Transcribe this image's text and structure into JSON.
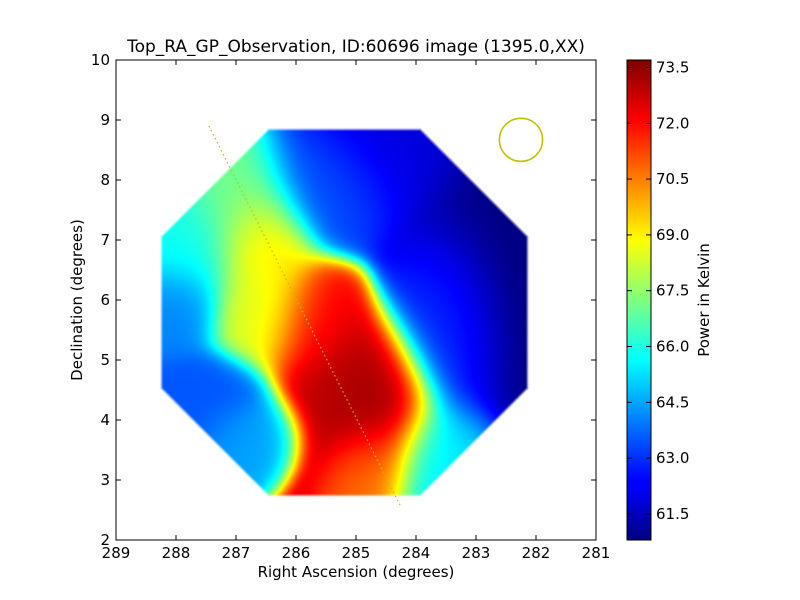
{
  "chart_data": {
    "type": "heatmap",
    "title": "Top_RA_GP_Observation, ID:60696 image (1395.0,XX)",
    "xlabel": "Right Ascension (degrees)",
    "ylabel": "Declination (degrees)",
    "xlim": [
      289,
      281
    ],
    "ylim": [
      2,
      10
    ],
    "x_ticks": [
      "289",
      "288",
      "287",
      "286",
      "285",
      "284",
      "283",
      "282",
      "281"
    ],
    "y_ticks": [
      "2",
      "3",
      "4",
      "5",
      "6",
      "7",
      "8",
      "9",
      "10"
    ],
    "colorbar": {
      "label": "Power in Kelvin",
      "range": [
        60.8,
        73.7
      ],
      "ticks": [
        "61.5",
        "63.0",
        "64.5",
        "66.0",
        "67.5",
        "69.0",
        "70.5",
        "72.0",
        "73.5"
      ],
      "colormap": "jet"
    },
    "footprint_ra_center": 285.2,
    "footprint_dec_center": 5.8,
    "footprint_radius_deg": 3.3,
    "beam_circle": {
      "ra": 282.25,
      "dec": 8.67,
      "radius_deg": 0.36,
      "color": "#bfbf00"
    },
    "galactic_plane_line": {
      "ra": [
        287.45,
        284.25
      ],
      "dec": [
        8.9,
        2.55
      ],
      "color": "#bfbf00",
      "style": "dotted"
    },
    "field_sources": [
      {
        "ra": 284.7,
        "dec": 4.2,
        "value": 73.6,
        "sx": 0.5,
        "sy": 0.6
      },
      {
        "ra": 285.1,
        "dec": 4.5,
        "value": 72.8,
        "sx": 0.55,
        "sy": 0.6
      },
      {
        "ra": 285.7,
        "dec": 5.6,
        "value": 72.2,
        "sx": 0.4,
        "sy": 0.45
      },
      {
        "ra": 284.8,
        "dec": 3.3,
        "value": 70.5,
        "sx": 0.35,
        "sy": 0.4
      },
      {
        "ra": 286.6,
        "dec": 7.0,
        "value": 69.3,
        "sx": 0.4,
        "sy": 0.5
      },
      {
        "ra": 286.5,
        "dec": 5.8,
        "value": 68.5,
        "sx": 0.45,
        "sy": 0.45
      },
      {
        "ra": 287.0,
        "dec": 7.8,
        "value": 67.2,
        "sx": 0.5,
        "sy": 0.5
      },
      {
        "ra": 287.5,
        "dec": 4.3,
        "value": 63.5,
        "sx": 0.5,
        "sy": 0.4
      },
      {
        "ra": 288.1,
        "dec": 5.9,
        "value": 64.0,
        "sx": 0.4,
        "sy": 0.4
      },
      {
        "ra": 286.8,
        "dec": 3.8,
        "value": 64.5,
        "sx": 0.4,
        "sy": 0.3
      },
      {
        "ra": 285.5,
        "dec": 8.0,
        "value": 63.5,
        "sx": 0.6,
        "sy": 0.5
      },
      {
        "ra": 283.4,
        "dec": 5.6,
        "value": 63.2,
        "sx": 0.5,
        "sy": 0.8
      },
      {
        "ra": 282.3,
        "dec": 6.5,
        "value": 60.8,
        "sx": 0.8,
        "sy": 1.3
      },
      {
        "ra": 283.6,
        "dec": 3.4,
        "value": 65.5,
        "sx": 0.5,
        "sy": 0.5
      },
      {
        "ra": 284.5,
        "dec": 8.6,
        "value": 62.0,
        "sx": 0.7,
        "sy": 0.6
      },
      {
        "ra": 287.9,
        "dec": 7.0,
        "value": 65.8,
        "sx": 0.6,
        "sy": 0.6
      }
    ]
  }
}
